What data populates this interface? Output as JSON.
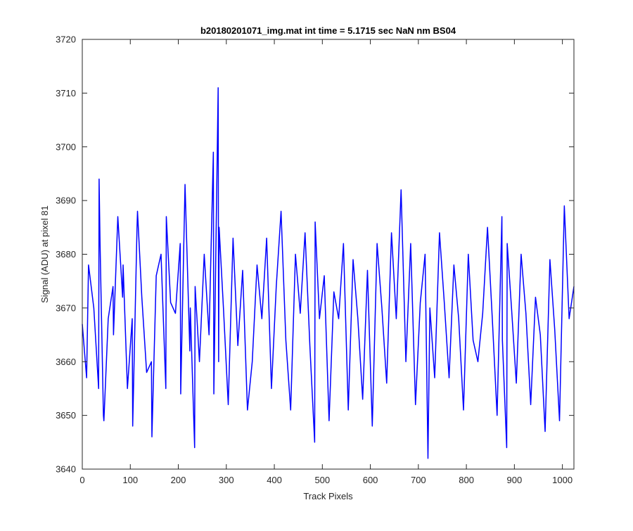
{
  "chart_data": {
    "type": "line",
    "title": "b20180201071_img.mat int time = 5.1715 sec  NaN nm BS04",
    "xlabel": "Track Pixels",
    "ylabel": "Signal (ADU) at pixel 81",
    "xlim": [
      0,
      1024
    ],
    "ylim": [
      3640,
      3720
    ],
    "xticks": [
      0,
      100,
      200,
      300,
      400,
      500,
      600,
      700,
      800,
      900,
      1000
    ],
    "yticks": [
      3640,
      3650,
      3660,
      3670,
      3680,
      3690,
      3700,
      3710,
      3720
    ],
    "grid": false,
    "series": [
      {
        "color": "#0000ff",
        "x": [
          0,
          9,
          13,
          24,
          34,
          35,
          37,
          44,
          45,
          54,
          64,
          65,
          74,
          84,
          85,
          94,
          104,
          105,
          114,
          115,
          124,
          134,
          144,
          145,
          154,
          164,
          174,
          175,
          184,
          194,
          204,
          205,
          214,
          224,
          225,
          234,
          235,
          244,
          254,
          264,
          273,
          274,
          283,
          284,
          285,
          294,
          304,
          314,
          324,
          334,
          344,
          354,
          364,
          374,
          384,
          394,
          404,
          414,
          424,
          434,
          444,
          454,
          464,
          474,
          484,
          485,
          494,
          504,
          514,
          524,
          534,
          544,
          554,
          564,
          574,
          584,
          594,
          604,
          614,
          624,
          634,
          644,
          654,
          664,
          674,
          684,
          694,
          704,
          714,
          720,
          724,
          734,
          744,
          754,
          764,
          774,
          784,
          794,
          804,
          814,
          824,
          834,
          844,
          854,
          864,
          874,
          875,
          884,
          885,
          894,
          904,
          914,
          924,
          934,
          944,
          954,
          964,
          974,
          984,
          994,
          1004,
          1014,
          1024
        ],
        "y": [
          3667,
          3657,
          3678,
          3670,
          3655,
          3694,
          3682,
          3650,
          3649,
          3668,
          3674,
          3665,
          3687,
          3672,
          3678,
          3655,
          3668,
          3648,
          3685,
          3688,
          3672,
          3658,
          3660,
          3646,
          3676,
          3680,
          3655,
          3687,
          3671,
          3669,
          3682,
          3654,
          3693,
          3662,
          3670,
          3644,
          3674,
          3660,
          3680,
          3665,
          3699,
          3654,
          3711,
          3660,
          3685,
          3670,
          3652,
          3683,
          3663,
          3677,
          3651,
          3660,
          3678,
          3668,
          3683,
          3655,
          3674,
          3688,
          3664,
          3651,
          3680,
          3669,
          3684,
          3663,
          3645,
          3686,
          3668,
          3676,
          3649,
          3673,
          3668,
          3682,
          3651,
          3679,
          3668,
          3653,
          3677,
          3648,
          3682,
          3670,
          3656,
          3684,
          3668,
          3692,
          3660,
          3682,
          3652,
          3671,
          3680,
          3642,
          3670,
          3657,
          3684,
          3671,
          3657,
          3678,
          3668,
          3651,
          3680,
          3664,
          3660,
          3669,
          3685,
          3668,
          3650,
          3687,
          3664,
          3644,
          3682,
          3670,
          3656,
          3680,
          3669,
          3652,
          3672,
          3665,
          3647,
          3679,
          3666,
          3649,
          3689,
          3668,
          3674
        ]
      }
    ]
  }
}
